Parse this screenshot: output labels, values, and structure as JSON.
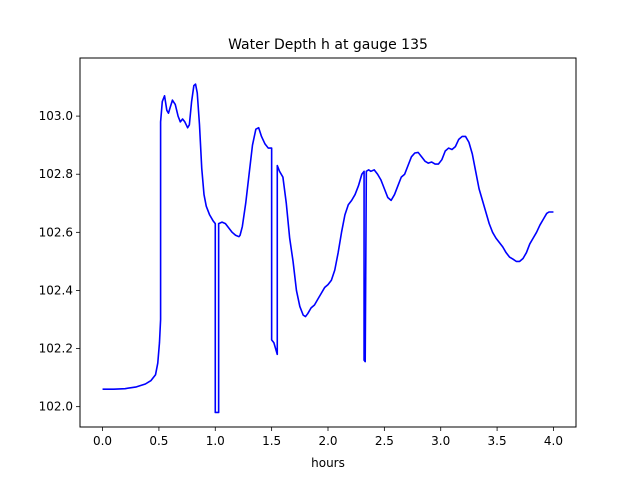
{
  "chart_data": {
    "type": "line",
    "title": "Water Depth h at gauge 135",
    "xlabel": "hours",
    "ylabel": "",
    "xlim": [
      -0.2,
      4.2
    ],
    "ylim": [
      101.93,
      103.2
    ],
    "xticks": [
      0.0,
      0.5,
      1.0,
      1.5,
      2.0,
      2.5,
      3.0,
      3.5,
      4.0
    ],
    "xtick_labels": [
      "0.0",
      "0.5",
      "1.0",
      "1.5",
      "2.0",
      "2.5",
      "3.0",
      "3.5",
      "4.0"
    ],
    "yticks": [
      102.0,
      102.2,
      102.4,
      102.6,
      102.8,
      103.0
    ],
    "ytick_labels": [
      "102.0",
      "102.2",
      "102.4",
      "102.6",
      "102.8",
      "103.0"
    ],
    "grid": false,
    "series": [
      {
        "name": "",
        "color": "#0000ff",
        "points": [
          [
            0.0,
            102.06
          ],
          [
            0.1,
            102.06
          ],
          [
            0.2,
            102.062
          ],
          [
            0.3,
            102.068
          ],
          [
            0.38,
            102.078
          ],
          [
            0.43,
            102.09
          ],
          [
            0.47,
            102.11
          ],
          [
            0.49,
            102.15
          ],
          [
            0.505,
            102.22
          ],
          [
            0.515,
            102.3
          ],
          [
            0.515,
            102.98
          ],
          [
            0.53,
            103.05
          ],
          [
            0.55,
            103.07
          ],
          [
            0.57,
            103.02
          ],
          [
            0.585,
            103.01
          ],
          [
            0.6,
            103.03
          ],
          [
            0.62,
            103.055
          ],
          [
            0.645,
            103.04
          ],
          [
            0.67,
            103.0
          ],
          [
            0.69,
            102.98
          ],
          [
            0.71,
            102.99
          ],
          [
            0.73,
            102.98
          ],
          [
            0.755,
            102.96
          ],
          [
            0.77,
            102.97
          ],
          [
            0.79,
            103.05
          ],
          [
            0.81,
            103.105
          ],
          [
            0.825,
            103.11
          ],
          [
            0.84,
            103.08
          ],
          [
            0.86,
            102.97
          ],
          [
            0.88,
            102.82
          ],
          [
            0.9,
            102.73
          ],
          [
            0.92,
            102.69
          ],
          [
            0.95,
            102.66
          ],
          [
            0.98,
            102.64
          ],
          [
            1.0,
            102.63
          ],
          [
            1.0,
            101.98
          ],
          [
            1.03,
            101.98
          ],
          [
            1.03,
            102.63
          ],
          [
            1.06,
            102.635
          ],
          [
            1.09,
            102.63
          ],
          [
            1.12,
            102.615
          ],
          [
            1.15,
            102.6
          ],
          [
            1.18,
            102.59
          ],
          [
            1.21,
            102.585
          ],
          [
            1.22,
            102.59
          ],
          [
            1.24,
            102.62
          ],
          [
            1.27,
            102.7
          ],
          [
            1.3,
            102.8
          ],
          [
            1.33,
            102.9
          ],
          [
            1.36,
            102.955
          ],
          [
            1.385,
            102.96
          ],
          [
            1.41,
            102.93
          ],
          [
            1.44,
            102.905
          ],
          [
            1.47,
            102.89
          ],
          [
            1.5,
            102.89
          ],
          [
            1.5,
            102.23
          ],
          [
            1.52,
            102.22
          ],
          [
            1.55,
            102.18
          ],
          [
            1.55,
            102.83
          ],
          [
            1.57,
            102.81
          ],
          [
            1.6,
            102.79
          ],
          [
            1.63,
            102.7
          ],
          [
            1.66,
            102.58
          ],
          [
            1.69,
            102.5
          ],
          [
            1.72,
            102.4
          ],
          [
            1.75,
            102.345
          ],
          [
            1.78,
            102.315
          ],
          [
            1.8,
            102.31
          ],
          [
            1.82,
            102.32
          ],
          [
            1.85,
            102.34
          ],
          [
            1.88,
            102.35
          ],
          [
            1.91,
            102.37
          ],
          [
            1.94,
            102.39
          ],
          [
            1.97,
            102.41
          ],
          [
            2.0,
            102.42
          ],
          [
            2.03,
            102.435
          ],
          [
            2.06,
            102.47
          ],
          [
            2.09,
            102.53
          ],
          [
            2.12,
            102.6
          ],
          [
            2.15,
            102.66
          ],
          [
            2.18,
            102.695
          ],
          [
            2.21,
            102.71
          ],
          [
            2.24,
            102.73
          ],
          [
            2.27,
            102.76
          ],
          [
            2.3,
            102.8
          ],
          [
            2.32,
            102.81
          ],
          [
            2.32,
            102.16
          ],
          [
            2.33,
            102.155
          ],
          [
            2.34,
            102.81
          ],
          [
            2.36,
            102.815
          ],
          [
            2.38,
            102.81
          ],
          [
            2.41,
            102.815
          ],
          [
            2.44,
            102.8
          ],
          [
            2.47,
            102.78
          ],
          [
            2.5,
            102.75
          ],
          [
            2.53,
            102.72
          ],
          [
            2.56,
            102.71
          ],
          [
            2.59,
            102.73
          ],
          [
            2.62,
            102.76
          ],
          [
            2.65,
            102.79
          ],
          [
            2.68,
            102.8
          ],
          [
            2.71,
            102.83
          ],
          [
            2.74,
            102.86
          ],
          [
            2.77,
            102.873
          ],
          [
            2.8,
            102.875
          ],
          [
            2.83,
            102.86
          ],
          [
            2.86,
            102.845
          ],
          [
            2.89,
            102.838
          ],
          [
            2.92,
            102.842
          ],
          [
            2.95,
            102.835
          ],
          [
            2.98,
            102.835
          ],
          [
            3.01,
            102.85
          ],
          [
            3.04,
            102.88
          ],
          [
            3.07,
            102.89
          ],
          [
            3.1,
            102.885
          ],
          [
            3.13,
            102.895
          ],
          [
            3.16,
            102.92
          ],
          [
            3.19,
            102.93
          ],
          [
            3.22,
            102.93
          ],
          [
            3.25,
            102.91
          ],
          [
            3.28,
            102.87
          ],
          [
            3.31,
            102.81
          ],
          [
            3.34,
            102.75
          ],
          [
            3.37,
            102.71
          ],
          [
            3.4,
            102.67
          ],
          [
            3.43,
            102.63
          ],
          [
            3.46,
            102.6
          ],
          [
            3.49,
            102.58
          ],
          [
            3.52,
            102.565
          ],
          [
            3.55,
            102.55
          ],
          [
            3.58,
            102.53
          ],
          [
            3.61,
            102.515
          ],
          [
            3.64,
            102.508
          ],
          [
            3.67,
            102.5
          ],
          [
            3.7,
            102.5
          ],
          [
            3.73,
            102.51
          ],
          [
            3.76,
            102.53
          ],
          [
            3.79,
            102.56
          ],
          [
            3.82,
            102.58
          ],
          [
            3.85,
            102.6
          ],
          [
            3.88,
            102.625
          ],
          [
            3.91,
            102.645
          ],
          [
            3.94,
            102.665
          ],
          [
            3.96,
            102.67
          ],
          [
            4.0,
            102.67
          ]
        ]
      }
    ]
  }
}
